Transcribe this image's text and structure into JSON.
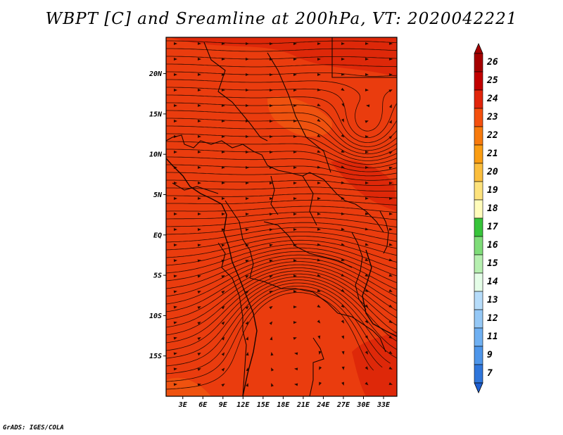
{
  "title": "WBPT [C] and Sreamline at 200hPa, VT: 2020042221",
  "map": {
    "lat_range": [
      -20,
      24.5
    ],
    "lon_range": [
      0.5,
      35
    ],
    "lat_ticks": [
      {
        "value": 20,
        "label": "20N"
      },
      {
        "value": 15,
        "label": "15N"
      },
      {
        "value": 10,
        "label": "10N"
      },
      {
        "value": 5,
        "label": "5N"
      },
      {
        "value": 0,
        "label": "EQ"
      },
      {
        "value": -5,
        "label": "5S"
      },
      {
        "value": -10,
        "label": "10S"
      },
      {
        "value": -15,
        "label": "15S"
      }
    ],
    "lon_ticks": [
      {
        "value": 3,
        "label": "3E"
      },
      {
        "value": 6,
        "label": "6E"
      },
      {
        "value": 9,
        "label": "9E"
      },
      {
        "value": 12,
        "label": "12E"
      },
      {
        "value": 15,
        "label": "15E"
      },
      {
        "value": 18,
        "label": "18E"
      },
      {
        "value": 21,
        "label": "21E"
      },
      {
        "value": 24,
        "label": "24E"
      },
      {
        "value": 27,
        "label": "27E"
      },
      {
        "value": 30,
        "label": "30E"
      },
      {
        "value": 33,
        "label": "33E"
      }
    ],
    "field_colors": {
      "base": "#ea3c0e",
      "warm": "#d92208",
      "cool": "#f05a10"
    },
    "streamline_color": "#2a0a00"
  },
  "colorbar": {
    "levels": [
      {
        "label": "26",
        "color": "#a50000"
      },
      {
        "label": "25",
        "color": "#c20000"
      },
      {
        "label": "24",
        "color": "#e1250b"
      },
      {
        "label": "23",
        "color": "#f4500e"
      },
      {
        "label": "22",
        "color": "#f77a0c"
      },
      {
        "label": "21",
        "color": "#fa9d12"
      },
      {
        "label": "20",
        "color": "#fbbe3d"
      },
      {
        "label": "19",
        "color": "#fde27c"
      },
      {
        "label": "18",
        "color": "#fffcbb"
      },
      {
        "label": "17",
        "color": "#37c43a"
      },
      {
        "label": "16",
        "color": "#7fdc79"
      },
      {
        "label": "15",
        "color": "#b6efb0"
      },
      {
        "label": "14",
        "color": "#e4fde7"
      },
      {
        "label": "13",
        "color": "#b6dcfa"
      },
      {
        "label": "12",
        "color": "#95c8f6"
      },
      {
        "label": "11",
        "color": "#6fb0f2"
      },
      {
        "label": "9",
        "color": "#4e96ea"
      },
      {
        "label": "7",
        "color": "#2f76db"
      }
    ],
    "under_color": "#1e5fd1"
  },
  "credit": "GrADS: IGES/COLA"
}
